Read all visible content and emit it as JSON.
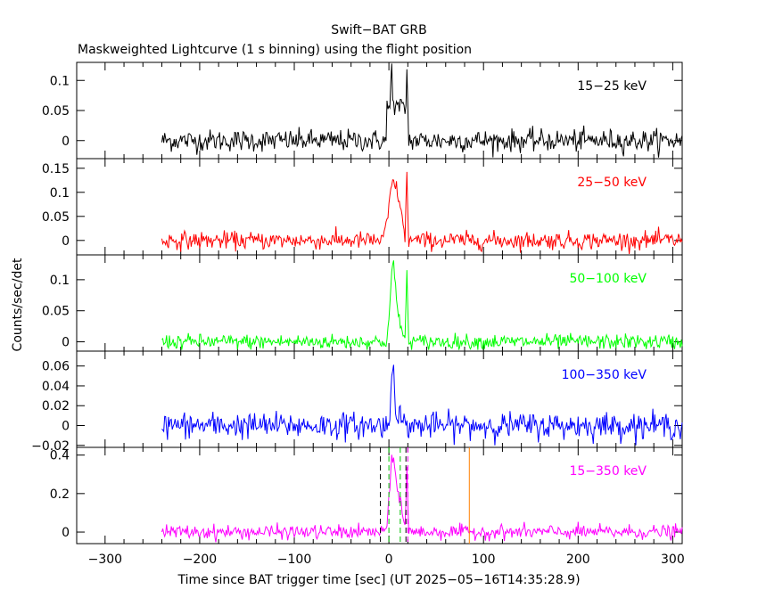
{
  "chart_data": {
    "type": "line",
    "title": "Swift−BAT GRB",
    "subtitle": "Maskweighted Lightcurve (1 s binning) using the flight position",
    "xlabel": "Time since BAT trigger time [sec] (UT 2025−05−16T14:35:28.9)",
    "ylabel": "Counts/sec/det",
    "xlim": [
      -330,
      310
    ],
    "x_ticks": [
      -300,
      -200,
      -100,
      0,
      100,
      200,
      300
    ],
    "x_tick_labels": [
      "−300",
      "−200",
      "−100",
      "0",
      "100",
      "200",
      "300"
    ],
    "data_start": -240,
    "data_end": 310,
    "panels": [
      {
        "band": "15−25 keV",
        "color": "#000000",
        "ylim": [
          -0.03,
          0.13
        ],
        "y_ticks": [
          0,
          0.05,
          0.1
        ],
        "y_tick_labels": [
          "0",
          "0.05",
          "0.1"
        ],
        "noise": 0.009,
        "features": [
          {
            "type": "box",
            "from": -2,
            "to": 17,
            "level": 0.055
          },
          {
            "type": "spike",
            "at": 19,
            "value": 0.12
          },
          {
            "type": "spike",
            "at": 3,
            "value": 0.075
          }
        ]
      },
      {
        "band": "25−50 keV",
        "color": "#ff0000",
        "ylim": [
          -0.03,
          0.17
        ],
        "y_ticks": [
          0,
          0.05,
          0.1,
          0.15
        ],
        "y_tick_labels": [
          "0",
          "0.05",
          "0.1",
          "0.15"
        ],
        "noise": 0.009,
        "features": [
          {
            "type": "peak",
            "at": 4,
            "width": 4,
            "value": 0.115
          },
          {
            "type": "peak",
            "at": 11,
            "width": 3,
            "value": 0.06
          },
          {
            "type": "spike",
            "at": 19,
            "value": 0.14
          }
        ]
      },
      {
        "band": "50−100 keV",
        "color": "#00ff00",
        "ylim": [
          -0.015,
          0.14
        ],
        "y_ticks": [
          0,
          0.05,
          0.1
        ],
        "y_tick_labels": [
          "0",
          "0.05",
          "0.1"
        ],
        "noise": 0.006,
        "features": [
          {
            "type": "peak",
            "at": 4,
            "width": 2.5,
            "value": 0.12
          },
          {
            "type": "peak",
            "at": 10,
            "width": 3,
            "value": 0.04
          },
          {
            "type": "spike",
            "at": 19,
            "value": 0.115
          }
        ]
      },
      {
        "band": "100−350 keV",
        "color": "#0000ff",
        "ylim": [
          -0.022,
          0.075
        ],
        "y_ticks": [
          -0.02,
          0,
          0.02,
          0.04,
          0.06
        ],
        "y_tick_labels": [
          "−0.02",
          "0",
          "0.02",
          "0.04",
          "0.06"
        ],
        "noise": 0.0065,
        "features": [
          {
            "type": "peak",
            "at": 4,
            "width": 1.5,
            "value": 0.065
          },
          {
            "type": "peak",
            "at": 9,
            "width": 3,
            "value": 0.015
          }
        ]
      },
      {
        "band": "15−350 keV",
        "color": "#ff00ff",
        "ylim": [
          -0.06,
          0.44
        ],
        "y_ticks": [
          0,
          0.2,
          0.4
        ],
        "y_tick_labels": [
          "0",
          "0.2",
          "0.4"
        ],
        "noise": 0.018,
        "features": [
          {
            "type": "peak",
            "at": 4,
            "width": 3,
            "value": 0.37
          },
          {
            "type": "peak",
            "at": 11,
            "width": 3,
            "value": 0.17
          },
          {
            "type": "spike",
            "at": 19,
            "value": 0.36
          }
        ],
        "vlines": [
          {
            "x": -9,
            "color": "#000000",
            "dash": true
          },
          {
            "x": 0,
            "color": "#00c000",
            "dash": true
          },
          {
            "x": 12,
            "color": "#00c000",
            "dash": true
          },
          {
            "x": 18,
            "color": "#000000",
            "dash": true
          },
          {
            "x": 20,
            "color": "#ff00ff",
            "dash": true
          },
          {
            "x": 85,
            "color": "#ff8000",
            "dash": false
          }
        ]
      }
    ]
  }
}
